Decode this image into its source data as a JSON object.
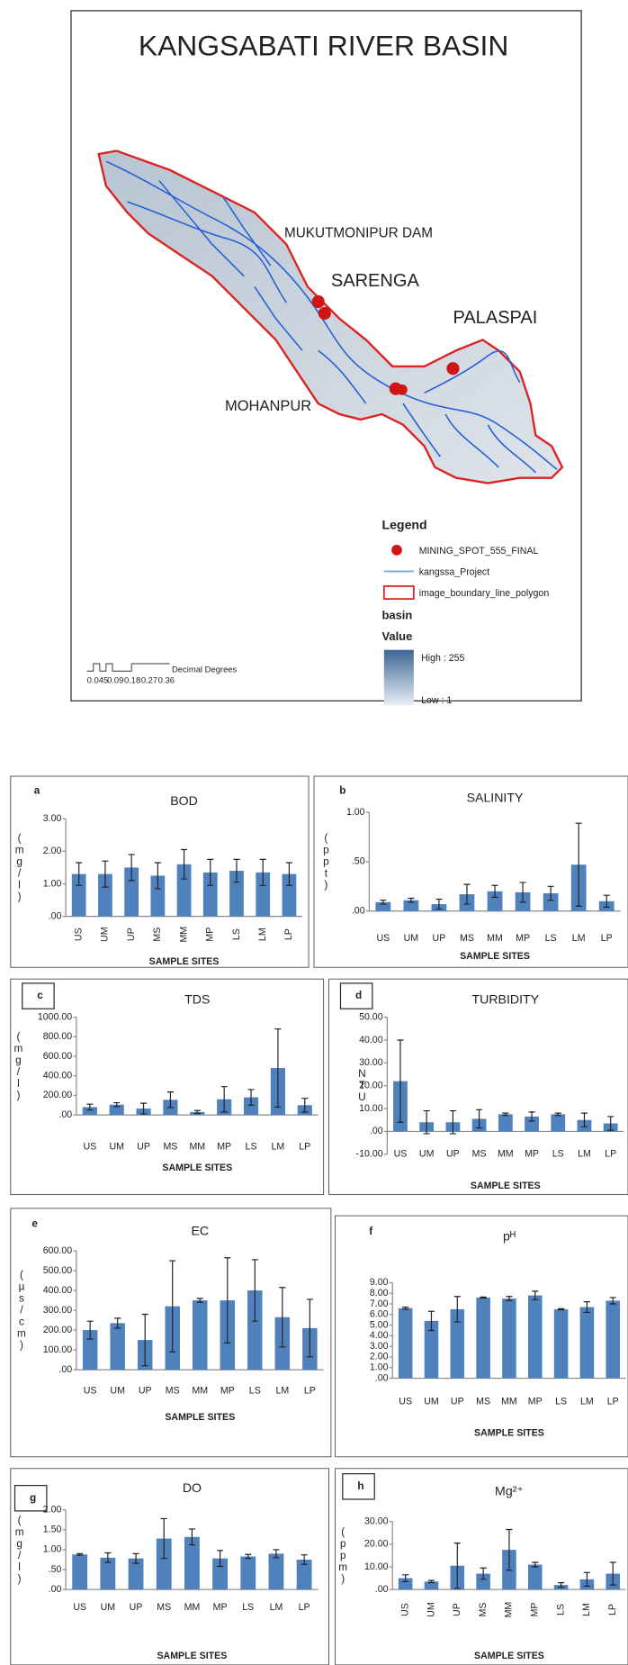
{
  "map": {
    "title": "KANGSABATI RIVER BASIN",
    "places": [
      "MUKUTMONIPUR DAM",
      "SARENGA",
      "PALASPAI",
      "MOHANPUR"
    ],
    "legend": {
      "title": "Legend",
      "items": [
        "MINING_SPOT_555_FINAL",
        "kangssa_Project",
        "image_boundary_line_polygon"
      ],
      "layer": "basin",
      "field": "Value",
      "high": "High : 255",
      "low": "Low : 1"
    },
    "scale_bar": {
      "labels": [
        "0.045",
        "0.09",
        "0.18",
        "0.27",
        "0.36"
      ],
      "unit": "Decimal Degrees"
    }
  },
  "chart_data": [
    {
      "type": "bar",
      "label": "a",
      "title": "BOD",
      "y_label": "(mg/l)",
      "x_label": "SAMPLE SITES",
      "color": "#4f81bd",
      "categories": [
        "US",
        "UM",
        "UP",
        "MS",
        "MM",
        "MP",
        "LS",
        "LM",
        "LP"
      ],
      "values": [
        1.3,
        1.3,
        1.5,
        1.25,
        1.6,
        1.35,
        1.4,
        1.35,
        1.3
      ],
      "errors": [
        0.35,
        0.4,
        0.4,
        0.4,
        0.45,
        0.4,
        0.35,
        0.4,
        0.35
      ],
      "ylim": [
        0,
        3
      ],
      "yticks": [
        {
          "value": 0,
          "label": ".00"
        },
        {
          "value": 1,
          "label": "1.00"
        },
        {
          "value": 2,
          "label": "2.00"
        },
        {
          "value": 3,
          "label": "3.00"
        }
      ]
    },
    {
      "type": "bar",
      "label": "b",
      "title": "SALINITY",
      "y_label": "(ppt)",
      "x_label": "SAMPLE SITES",
      "color": "#4f81bd",
      "categories": [
        "US",
        "UM",
        "UP",
        "MS",
        "MM",
        "MP",
        "LS",
        "LM",
        "LP"
      ],
      "values": [
        0.09,
        0.11,
        0.07,
        0.17,
        0.2,
        0.19,
        0.18,
        0.47,
        0.1
      ],
      "errors": [
        0.02,
        0.02,
        0.05,
        0.1,
        0.06,
        0.1,
        0.07,
        0.42,
        0.06
      ],
      "ylim": [
        0,
        1
      ],
      "yticks": [
        {
          "value": 0,
          "label": ".00"
        },
        {
          "value": 0.5,
          "label": ".50"
        },
        {
          "value": 1,
          "label": "1.00"
        }
      ]
    },
    {
      "type": "bar",
      "label": "c",
      "title": "TDS",
      "y_label": "(mg/l)",
      "x_label": "SAMPLE SITES",
      "color": "#4f81bd",
      "categories": [
        "US",
        "UM",
        "UP",
        "MS",
        "MM",
        "MP",
        "LS",
        "LM",
        "LP"
      ],
      "values": [
        80,
        105,
        65,
        155,
        30,
        160,
        180,
        480,
        100
      ],
      "errors": [
        30,
        20,
        55,
        80,
        15,
        130,
        80,
        400,
        70
      ],
      "ylim": [
        0,
        1000
      ],
      "yticks": [
        {
          "value": 0,
          "label": ".00"
        },
        {
          "value": 200,
          "label": "200.00"
        },
        {
          "value": 400,
          "label": "400.00"
        },
        {
          "value": 600,
          "label": "600.00"
        },
        {
          "value": 800,
          "label": "800.00"
        },
        {
          "value": 1000,
          "label": "1000.00"
        }
      ]
    },
    {
      "type": "bar",
      "label": "d",
      "title": "TURBIDITY",
      "y_label": "NTU",
      "x_label": "SAMPLE SITES",
      "color": "#4f81bd",
      "categories": [
        "US",
        "UM",
        "UP",
        "MS",
        "MM",
        "MP",
        "LS",
        "LM",
        "LP"
      ],
      "values": [
        22,
        4,
        4,
        5.5,
        7.5,
        6.5,
        7.5,
        5,
        3.5
      ],
      "errors": [
        18,
        5,
        5,
        4,
        0.5,
        2,
        0.5,
        3,
        3
      ],
      "ylim": [
        -10,
        50
      ],
      "yticks": [
        {
          "value": -10,
          "label": "-10.00"
        },
        {
          "value": 0,
          "label": ".00"
        },
        {
          "value": 10,
          "label": "10.00"
        },
        {
          "value": 20,
          "label": "20.00"
        },
        {
          "value": 30,
          "label": "30.00"
        },
        {
          "value": 40,
          "label": "40.00"
        },
        {
          "value": 50,
          "label": "50.00"
        }
      ]
    },
    {
      "type": "bar",
      "label": "e",
      "title": "EC",
      "y_label": "(µs/cm)",
      "x_label": "SAMPLE SITES",
      "color": "#4f81bd",
      "categories": [
        "US",
        "UM",
        "UP",
        "MS",
        "MM",
        "MP",
        "LS",
        "LM",
        "LP"
      ],
      "values": [
        200,
        235,
        150,
        320,
        350,
        350,
        400,
        265,
        210
      ],
      "errors": [
        45,
        25,
        130,
        230,
        10,
        215,
        155,
        150,
        145
      ],
      "ylim": [
        0,
        600
      ],
      "yticks": [
        {
          "value": 0,
          "label": ".00"
        },
        {
          "value": 100,
          "label": "100.00"
        },
        {
          "value": 200,
          "label": "200.00"
        },
        {
          "value": 300,
          "label": "300.00"
        },
        {
          "value": 400,
          "label": "400.00"
        },
        {
          "value": 500,
          "label": "500.00"
        },
        {
          "value": 600,
          "label": "600.00"
        }
      ]
    },
    {
      "type": "bar",
      "label": "f",
      "title": "pᴴ",
      "x_label": "SAMPLE SITES",
      "color": "#4f81bd",
      "categories": [
        "US",
        "UM",
        "UP",
        "MS",
        "MM",
        "MP",
        "LS",
        "LM",
        "LP"
      ],
      "values": [
        6.6,
        5.4,
        6.5,
        7.6,
        7.5,
        7.8,
        6.5,
        6.7,
        7.3
      ],
      "errors": [
        0.1,
        0.9,
        1.2,
        0.05,
        0.2,
        0.4,
        0.05,
        0.5,
        0.3
      ],
      "ylim": [
        0,
        9
      ],
      "yticks": [
        {
          "value": 0,
          "label": ".00"
        },
        {
          "value": 1,
          "label": "1.00"
        },
        {
          "value": 2,
          "label": "2.00"
        },
        {
          "value": 3,
          "label": "3.00"
        },
        {
          "value": 4,
          "label": "4.00"
        },
        {
          "value": 5,
          "label": "5.00"
        },
        {
          "value": 6,
          "label": "6.00"
        },
        {
          "value": 7,
          "label": "7.00"
        },
        {
          "value": 8,
          "label": "8.00"
        },
        {
          "value": 9,
          "label": "9.00"
        }
      ]
    },
    {
      "type": "bar",
      "label": "g",
      "title": "DO",
      "y_label": "(mg/l)",
      "x_label": "SAMPLE SITES",
      "color": "#4f81bd",
      "categories": [
        "US",
        "UM",
        "UP",
        "MS",
        "MM",
        "MP",
        "LS",
        "LM",
        "LP"
      ],
      "values": [
        0.88,
        0.8,
        0.78,
        1.28,
        1.32,
        0.78,
        0.83,
        0.9,
        0.75
      ],
      "errors": [
        0.02,
        0.12,
        0.12,
        0.5,
        0.2,
        0.2,
        0.05,
        0.1,
        0.12
      ],
      "ylim": [
        0,
        2
      ],
      "yticks": [
        {
          "value": 0,
          "label": ".00"
        },
        {
          "value": 0.5,
          "label": ".50"
        },
        {
          "value": 1,
          "label": "1.00"
        },
        {
          "value": 1.5,
          "label": "1.50"
        },
        {
          "value": 2,
          "label": "2.00"
        }
      ]
    },
    {
      "type": "bar",
      "label": "h",
      "title": "Mg²⁺",
      "y_label": "(ppm)",
      "x_label": "SAMPLE SITES",
      "color": "#4f81bd",
      "categories": [
        "US",
        "UM",
        "UP",
        "MS",
        "MM",
        "MP",
        "LS",
        "LM",
        "LP"
      ],
      "values": [
        5,
        3.5,
        10.5,
        7,
        17.5,
        11,
        2,
        4.5,
        7
      ],
      "errors": [
        1.5,
        0.5,
        10,
        2.5,
        9,
        1,
        1,
        3,
        5
      ],
      "ylim": [
        0,
        30
      ],
      "yticks": [
        {
          "value": 0,
          "label": ".00"
        },
        {
          "value": 10,
          "label": "10.00"
        },
        {
          "value": 20,
          "label": "20.00"
        },
        {
          "value": 30,
          "label": "30.00"
        }
      ]
    }
  ]
}
